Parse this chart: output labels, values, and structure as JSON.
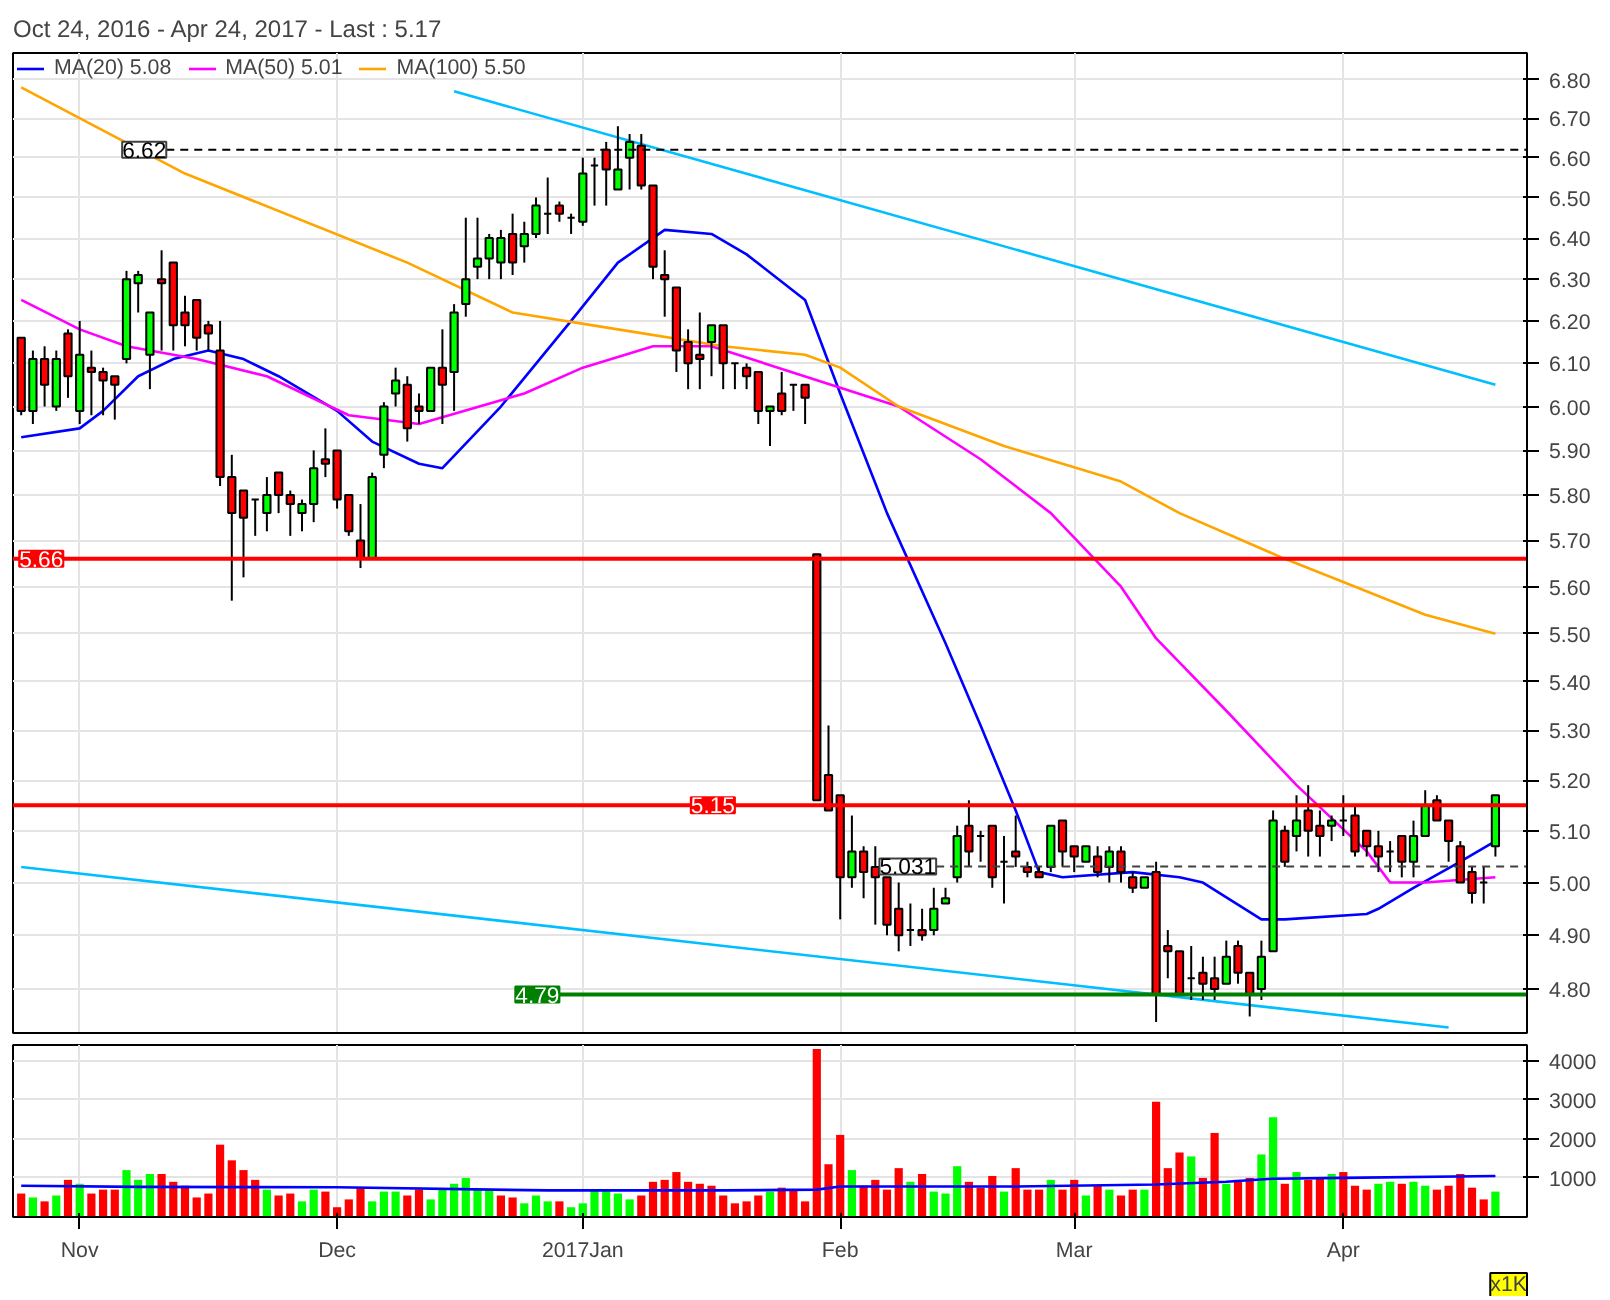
{
  "chart_data": [
    {
      "type": "candlestick",
      "title": "Oct 24, 2016 - Apr 24, 2017 - Last : 5.17",
      "log": true,
      "grid": true,
      "legend": "top left",
      "tick_labels": "y",
      "categories": [
        null,
        null,
        null,
        null,
        null,
        null,
        null,
        null,
        null,
        null,
        null,
        null,
        null,
        null,
        null,
        null,
        null,
        null,
        null,
        null,
        null,
        null,
        null,
        null,
        null,
        null,
        null,
        null,
        null,
        null,
        null,
        null,
        null,
        null,
        null,
        null,
        null,
        null,
        null,
        null,
        null,
        null,
        null,
        null,
        null,
        null,
        null,
        null,
        null,
        null,
        null,
        null,
        null,
        null,
        null,
        null,
        null,
        null,
        null,
        null,
        null,
        null,
        null,
        null,
        null,
        null,
        null,
        null,
        null,
        null,
        null,
        null,
        null,
        null,
        null,
        null,
        null,
        null,
        null,
        null,
        null,
        null,
        null,
        null,
        null,
        null,
        null,
        null,
        null,
        null,
        null,
        null,
        null,
        null,
        null,
        null,
        null,
        null,
        null,
        null,
        null,
        null,
        null,
        null,
        null,
        null,
        null,
        null,
        null,
        null,
        null,
        null,
        null,
        null,
        null,
        null,
        null,
        null,
        null,
        null,
        null,
        null,
        null,
        null,
        null,
        null,
        null
      ],
      "ylim": [
        4.72,
        6.87
      ],
      "yticks": [
        {
          "value": 4.8,
          "label": "4.80"
        },
        {
          "value": 4.9,
          "label": "4.90"
        },
        {
          "value": 5.0,
          "label": "5.00"
        },
        {
          "value": 5.1,
          "label": "5.10"
        },
        {
          "value": 5.2,
          "label": "5.20"
        },
        {
          "value": 5.3,
          "label": "5.30"
        },
        {
          "value": 5.4,
          "label": "5.40"
        },
        {
          "value": 5.5,
          "label": "5.50"
        },
        {
          "value": 5.6,
          "label": "5.60"
        },
        {
          "value": 5.7,
          "label": "5.70"
        },
        {
          "value": 5.8,
          "label": "5.80"
        },
        {
          "value": 5.9,
          "label": "5.90"
        },
        {
          "value": 6.0,
          "label": "6.00"
        },
        {
          "value": 6.1,
          "label": "6.10"
        },
        {
          "value": 6.2,
          "label": "6.20"
        },
        {
          "value": 6.3,
          "label": "6.30"
        },
        {
          "value": 6.4,
          "label": "6.40"
        },
        {
          "value": 6.5,
          "label": "6.50"
        },
        {
          "value": 6.6,
          "label": "6.60"
        },
        {
          "value": 6.7,
          "label": "6.70"
        },
        {
          "value": 6.8,
          "label": "6.80"
        }
      ],
      "ref_lines": [
        {
          "axis": "y",
          "value": 6.62,
          "label": "6.62",
          "color": "#000000",
          "line_style": "dashed"
        },
        {
          "axis": "y",
          "value": 5.66,
          "label": "5.66",
          "color": "#ff0000",
          "line_style": "solid"
        },
        {
          "axis": "y",
          "value": 5.15,
          "label": "5.15",
          "color": "#ff0000",
          "line_style": "solid"
        },
        {
          "axis": "y",
          "value": 5.031,
          "label": "5.031",
          "color": "#404040",
          "line_style": "dashed"
        },
        {
          "axis": "y",
          "value": 4.79,
          "label": "4.79",
          "color": "#008000",
          "line_style": "solid"
        }
      ],
      "series": [
        {
          "type": "line",
          "color": "#00bfff",
          "values": [
            null,
            null,
            null,
            null,
            null,
            null,
            null,
            null,
            null,
            null,
            null,
            null,
            null,
            null,
            null,
            null,
            null,
            null,
            null,
            null,
            null,
            null,
            null,
            null,
            null,
            null,
            null,
            null,
            null,
            null,
            null,
            null,
            null,
            null,
            null,
            null,
            null,
            6.77,
            null,
            null,
            null,
            null,
            null,
            null,
            null,
            null,
            null,
            null,
            null,
            null,
            null,
            null,
            null,
            null,
            null,
            null,
            null,
            null,
            null,
            null,
            null,
            null,
            null,
            null,
            null,
            null,
            null,
            null,
            null,
            null,
            null,
            null,
            null,
            null,
            null,
            null,
            null,
            null,
            null,
            null,
            null,
            null,
            null,
            null,
            null,
            null,
            null,
            null,
            null,
            null,
            null,
            null,
            null,
            null,
            null,
            null,
            null,
            null,
            null,
            null,
            null,
            null,
            null,
            null,
            null,
            null,
            null,
            null,
            null,
            null,
            null,
            null,
            null,
            null,
            null,
            null,
            null,
            null,
            null,
            null,
            null,
            null,
            null,
            null,
            null,
            null,
            6.05
          ]
        },
        {
          "type": "line",
          "color": "#00bfff",
          "values": [
            5.03,
            null,
            null,
            null,
            null,
            null,
            null,
            null,
            null,
            null,
            null,
            null,
            null,
            null,
            null,
            null,
            null,
            null,
            null,
            null,
            null,
            null,
            null,
            null,
            null,
            null,
            null,
            null,
            null,
            null,
            null,
            null,
            null,
            null,
            null,
            null,
            null,
            null,
            null,
            null,
            null,
            null,
            null,
            null,
            null,
            null,
            null,
            null,
            null,
            null,
            null,
            null,
            null,
            null,
            null,
            null,
            null,
            null,
            null,
            null,
            null,
            null,
            null,
            null,
            null,
            null,
            null,
            null,
            null,
            null,
            null,
            null,
            null,
            null,
            null,
            null,
            null,
            null,
            null,
            null,
            null,
            null,
            null,
            null,
            null,
            null,
            null,
            null,
            null,
            null,
            null,
            null,
            null,
            null,
            null,
            null,
            null,
            null,
            null,
            null,
            null,
            null,
            null,
            null,
            null,
            null,
            null,
            null,
            null,
            null,
            null,
            null,
            null,
            null,
            null,
            null,
            null,
            null,
            null,
            null,
            null,
            null,
            4.73,
            null,
            null,
            null,
            null
          ]
        },
        {
          "type": "line",
          "name": "MA(20) 5.08",
          "color": "#0000ff",
          "values": [
            5.93,
            null,
            null,
            null,
            null,
            5.95,
            null,
            5.99,
            null,
            null,
            6.07,
            null,
            null,
            6.11,
            null,
            null,
            6.13,
            null,
            null,
            6.11,
            null,
            null,
            6.07,
            null,
            null,
            null,
            null,
            5.99,
            null,
            null,
            5.92,
            null,
            null,
            null,
            5.87,
            null,
            5.86,
            null,
            null,
            null,
            null,
            6.0,
            null,
            null,
            null,
            null,
            null,
            6.2,
            null,
            null,
            null,
            6.34,
            null,
            null,
            null,
            6.42,
            null,
            null,
            null,
            6.41,
            null,
            null,
            6.36,
            null,
            null,
            null,
            null,
            6.25,
            null,
            null,
            6.03,
            null,
            null,
            null,
            5.76,
            null,
            null,
            null,
            null,
            5.48,
            null,
            null,
            5.31,
            null,
            null,
            5.14,
            null,
            5.02,
            null,
            5.01,
            null,
            null,
            null,
            null,
            null,
            5.02,
            null,
            null,
            null,
            5.01,
            null,
            5.0,
            null,
            null,
            null,
            null,
            4.93,
            null,
            4.93,
            null,
            null,
            null,
            null,
            null,
            null,
            4.94,
            4.95,
            null,
            null,
            4.99,
            null,
            null,
            null,
            5.04,
            null,
            null,
            5.08
          ]
        },
        {
          "type": "line",
          "name": "MA(50) 5.01",
          "color": "#ff00ff",
          "values": [
            6.25,
            null,
            null,
            null,
            null,
            6.18,
            null,
            null,
            null,
            6.14,
            null,
            null,
            null,
            null,
            null,
            6.11,
            null,
            null,
            null,
            null,
            null,
            6.07,
            null,
            null,
            null,
            null,
            null,
            null,
            5.98,
            null,
            null,
            null,
            null,
            null,
            5.96,
            null,
            null,
            null,
            null,
            null,
            null,
            null,
            null,
            6.03,
            null,
            null,
            null,
            null,
            6.09,
            null,
            null,
            null,
            null,
            null,
            6.14,
            null,
            null,
            null,
            null,
            6.14,
            null,
            null,
            null,
            null,
            null,
            null,
            null,
            null,
            null,
            null,
            null,
            null,
            null,
            null,
            null,
            6.0,
            null,
            null,
            null,
            null,
            null,
            null,
            5.88,
            null,
            null,
            null,
            null,
            null,
            5.76,
            null,
            null,
            null,
            null,
            null,
            5.6,
            null,
            null,
            5.49,
            null,
            null,
            null,
            null,
            null,
            5.34,
            null,
            null,
            null,
            null,
            null,
            5.19,
            null,
            null,
            null,
            null,
            null,
            5.06,
            null,
            5.0,
            null,
            null,
            5.0,
            null,
            null,
            null,
            null,
            null,
            5.01
          ]
        },
        {
          "type": "line",
          "name": "MA(100) 5.50",
          "color": "#ffa500",
          "values": [
            6.78,
            null,
            null,
            null,
            null,
            null,
            null,
            null,
            null,
            null,
            null,
            null,
            null,
            null,
            6.56,
            null,
            null,
            null,
            null,
            null,
            null,
            null,
            null,
            null,
            null,
            null,
            null,
            null,
            null,
            null,
            null,
            null,
            null,
            6.34,
            null,
            null,
            null,
            null,
            null,
            null,
            null,
            null,
            6.22,
            null,
            null,
            null,
            null,
            null,
            null,
            null,
            null,
            6.18,
            null,
            null,
            null,
            null,
            null,
            null,
            null,
            null,
            6.14,
            null,
            null,
            null,
            null,
            null,
            null,
            6.12,
            null,
            null,
            6.09,
            null,
            null,
            null,
            null,
            6.0,
            null,
            null,
            null,
            null,
            null,
            null,
            null,
            null,
            5.91,
            null,
            null,
            null,
            null,
            null,
            null,
            null,
            null,
            null,
            5.83,
            null,
            null,
            null,
            null,
            5.76,
            null,
            null,
            null,
            null,
            null,
            null,
            null,
            null,
            5.66,
            null,
            null,
            null,
            null,
            5.61,
            null,
            null,
            null,
            null,
            null,
            null,
            5.54,
            null,
            null,
            null,
            null,
            null,
            5.5
          ]
        }
      ],
      "ohlc": [
        [
          6.16,
          6.16,
          5.98,
          5.99
        ],
        [
          5.99,
          6.13,
          5.96,
          6.11
        ],
        [
          6.11,
          6.14,
          6.0,
          6.05
        ],
        [
          6.0,
          6.13,
          5.99,
          6.11
        ],
        [
          6.17,
          6.18,
          6.02,
          6.07
        ],
        [
          5.99,
          6.2,
          5.96,
          6.12
        ],
        [
          6.09,
          6.13,
          5.98,
          6.08
        ],
        [
          6.08,
          6.09,
          5.98,
          6.06
        ],
        [
          6.07,
          6.07,
          5.97,
          6.05
        ],
        [
          6.11,
          6.32,
          6.1,
          6.3
        ],
        [
          6.29,
          6.32,
          6.22,
          6.31
        ],
        [
          6.12,
          6.22,
          6.04,
          6.22
        ],
        [
          6.3,
          6.37,
          6.13,
          6.29
        ],
        [
          6.34,
          6.34,
          6.13,
          6.19
        ],
        [
          6.22,
          6.26,
          6.14,
          6.19
        ],
        [
          6.25,
          6.25,
          6.13,
          6.16
        ],
        [
          6.19,
          6.2,
          6.13,
          6.17
        ],
        [
          6.13,
          6.2,
          5.82,
          5.84
        ],
        [
          5.84,
          5.89,
          5.57,
          5.76
        ],
        [
          5.81,
          5.81,
          5.62,
          5.75
        ],
        [
          5.79,
          5.79,
          5.71,
          5.79
        ],
        [
          5.76,
          5.84,
          5.72,
          5.8
        ],
        [
          5.85,
          5.85,
          5.76,
          5.8
        ],
        [
          5.8,
          5.81,
          5.71,
          5.78
        ],
        [
          5.76,
          5.79,
          5.72,
          5.78
        ],
        [
          5.78,
          5.9,
          5.74,
          5.86
        ],
        [
          5.88,
          5.95,
          5.84,
          5.87
        ],
        [
          5.9,
          5.9,
          5.77,
          5.79
        ],
        [
          5.8,
          5.8,
          5.71,
          5.72
        ],
        [
          5.7,
          5.78,
          5.64,
          5.66
        ],
        [
          5.66,
          5.85,
          5.66,
          5.84
        ],
        [
          5.89,
          6.01,
          5.86,
          6.0
        ],
        [
          6.03,
          6.09,
          6.0,
          6.06
        ],
        [
          6.05,
          6.07,
          5.92,
          5.95
        ],
        [
          6.0,
          6.03,
          5.96,
          5.99
        ],
        [
          5.99,
          6.09,
          5.99,
          6.09
        ],
        [
          6.09,
          6.18,
          5.96,
          6.05
        ],
        [
          6.08,
          6.24,
          5.99,
          6.22
        ],
        [
          6.24,
          6.45,
          6.21,
          6.3
        ],
        [
          6.33,
          6.45,
          6.3,
          6.35
        ],
        [
          6.35,
          6.41,
          6.3,
          6.4
        ],
        [
          6.34,
          6.42,
          6.3,
          6.4
        ],
        [
          6.41,
          6.46,
          6.31,
          6.34
        ],
        [
          6.38,
          6.44,
          6.34,
          6.41
        ],
        [
          6.41,
          6.5,
          6.4,
          6.48
        ],
        [
          6.46,
          6.55,
          6.41,
          6.46
        ],
        [
          6.48,
          6.49,
          6.44,
          6.46
        ],
        [
          6.45,
          6.46,
          6.41,
          6.45
        ],
        [
          6.44,
          6.6,
          6.43,
          6.56
        ],
        [
          6.58,
          6.6,
          6.48,
          6.58
        ],
        [
          6.62,
          6.64,
          6.48,
          6.57
        ],
        [
          6.52,
          6.68,
          6.52,
          6.57
        ],
        [
          6.6,
          6.66,
          6.52,
          6.64
        ],
        [
          6.63,
          6.66,
          6.52,
          6.53
        ],
        [
          6.53,
          6.53,
          6.3,
          6.33
        ],
        [
          6.31,
          6.37,
          6.21,
          6.3
        ],
        [
          6.28,
          6.28,
          6.08,
          6.13
        ],
        [
          6.15,
          6.18,
          6.04,
          6.1
        ],
        [
          6.12,
          6.22,
          6.04,
          6.11
        ],
        [
          6.15,
          6.19,
          6.07,
          6.19
        ],
        [
          6.19,
          6.19,
          6.04,
          6.1
        ],
        [
          6.1,
          6.1,
          6.04,
          6.1
        ],
        [
          6.09,
          6.1,
          6.04,
          6.07
        ],
        [
          6.08,
          6.08,
          5.96,
          5.99
        ],
        [
          5.99,
          6.0,
          5.91,
          6.0
        ],
        [
          6.03,
          6.08,
          5.98,
          5.99
        ],
        [
          6.05,
          6.05,
          5.99,
          6.05
        ],
        [
          6.05,
          6.05,
          5.96,
          6.02
        ],
        [
          5.67,
          5.67,
          5.16,
          5.16
        ],
        [
          5.21,
          5.31,
          5.14,
          5.14
        ],
        [
          5.17,
          5.17,
          4.93,
          5.01
        ],
        [
          5.01,
          5.13,
          4.99,
          5.06
        ],
        [
          5.06,
          5.07,
          4.97,
          5.02
        ],
        [
          5.03,
          5.07,
          4.92,
          5.01
        ],
        [
          5.01,
          5.01,
          4.9,
          4.92
        ],
        [
          4.95,
          5.0,
          4.87,
          4.9
        ],
        [
          4.91,
          4.96,
          4.88,
          4.91
        ],
        [
          4.91,
          4.95,
          4.89,
          4.9
        ],
        [
          4.91,
          4.99,
          4.9,
          4.95
        ],
        [
          4.96,
          4.99,
          4.96,
          4.97
        ],
        [
          5.01,
          5.11,
          5.0,
          5.09
        ],
        [
          5.11,
          5.16,
          5.03,
          5.06
        ],
        [
          5.09,
          5.1,
          5.04,
          5.09
        ],
        [
          5.11,
          5.11,
          4.99,
          5.01
        ],
        [
          5.04,
          5.09,
          4.96,
          5.04
        ],
        [
          5.06,
          5.13,
          5.03,
          5.05
        ],
        [
          5.03,
          5.04,
          5.01,
          5.02
        ],
        [
          5.02,
          5.03,
          5.01,
          5.01
        ],
        [
          5.03,
          5.11,
          5.02,
          5.11
        ],
        [
          5.12,
          5.12,
          5.03,
          5.06
        ],
        [
          5.07,
          5.07,
          5.02,
          5.05
        ],
        [
          5.04,
          5.07,
          5.04,
          5.07
        ],
        [
          5.05,
          5.07,
          5.01,
          5.02
        ],
        [
          5.03,
          5.07,
          5.0,
          5.06
        ],
        [
          5.06,
          5.07,
          5.0,
          5.02
        ],
        [
          5.01,
          5.02,
          4.98,
          4.99
        ],
        [
          4.99,
          5.01,
          4.99,
          5.01
        ],
        [
          5.02,
          5.04,
          4.74,
          4.79
        ],
        [
          4.88,
          4.91,
          4.82,
          4.87
        ],
        [
          4.87,
          4.87,
          4.79,
          4.79
        ],
        [
          4.82,
          4.88,
          4.78,
          4.82
        ],
        [
          4.83,
          4.86,
          4.78,
          4.81
        ],
        [
          4.82,
          4.86,
          4.78,
          4.8
        ],
        [
          4.81,
          4.89,
          4.81,
          4.86
        ],
        [
          4.88,
          4.89,
          4.81,
          4.83
        ],
        [
          4.83,
          4.83,
          4.75,
          4.79
        ],
        [
          4.8,
          4.89,
          4.78,
          4.86
        ],
        [
          4.87,
          5.14,
          4.87,
          5.12
        ],
        [
          5.1,
          5.11,
          5.03,
          5.04
        ],
        [
          5.09,
          5.17,
          5.06,
          5.12
        ],
        [
          5.14,
          5.19,
          5.05,
          5.1
        ],
        [
          5.11,
          5.14,
          5.05,
          5.09
        ],
        [
          5.11,
          5.13,
          5.08,
          5.12
        ],
        [
          5.12,
          5.17,
          5.09,
          5.12
        ],
        [
          5.13,
          5.15,
          5.05,
          5.06
        ],
        [
          5.1,
          5.1,
          5.05,
          5.07
        ],
        [
          5.07,
          5.1,
          5.02,
          5.05
        ],
        [
          5.06,
          5.08,
          5.02,
          5.06
        ],
        [
          5.09,
          5.09,
          5.01,
          5.04
        ],
        [
          5.04,
          5.12,
          5.01,
          5.09
        ],
        [
          5.09,
          5.18,
          5.09,
          5.15
        ],
        [
          5.16,
          5.17,
          5.12,
          5.12
        ],
        [
          5.12,
          5.12,
          5.04,
          5.08
        ],
        [
          5.07,
          5.08,
          5.0,
          5.0
        ],
        [
          5.02,
          5.03,
          4.96,
          4.98
        ],
        [
          5.0,
          5.03,
          4.96,
          5.0
        ],
        [
          5.07,
          5.17,
          5.05,
          5.17
        ]
      ],
      "colors": [
        "#ff0000",
        "#00ff00",
        "#ff0000",
        "#00ff00",
        "#ff0000",
        "#00ff00",
        "#ff0000",
        "#ff0000",
        "#ff0000",
        "#00ff00",
        "#00ff00",
        "#00ff00",
        "#ff0000",
        "#ff0000",
        "#ff0000",
        "#ff0000",
        "#ff0000",
        "#ff0000",
        "#ff0000",
        "#ff0000",
        "#000000",
        "#00ff00",
        "#ff0000",
        "#ff0000",
        "#00ff00",
        "#00ff00",
        "#ff0000",
        "#ff0000",
        "#ff0000",
        "#ff0000",
        "#00ff00",
        "#00ff00",
        "#00ff00",
        "#ff0000",
        "#ff0000",
        "#00ff00",
        "#ff0000",
        "#00ff00",
        "#00ff00",
        "#00ff00",
        "#00ff00",
        "#00ff00",
        "#ff0000",
        "#00ff00",
        "#00ff00",
        "#000000",
        "#ff0000",
        "#000000",
        "#00ff00",
        "#000000",
        "#ff0000",
        "#00ff00",
        "#00ff00",
        "#ff0000",
        "#ff0000",
        "#ff0000",
        "#ff0000",
        "#ff0000",
        "#ff0000",
        "#00ff00",
        "#ff0000",
        "#000000",
        "#ff0000",
        "#ff0000",
        "#00ff00",
        "#ff0000",
        "#000000",
        "#ff0000",
        "#ff0000",
        "#ff0000",
        "#ff0000",
        "#00ff00",
        "#ff0000",
        "#ff0000",
        "#ff0000",
        "#ff0000",
        "#000000",
        "#ff0000",
        "#00ff00",
        "#00ff00",
        "#00ff00",
        "#ff0000",
        "#000000",
        "#ff0000",
        "#000000",
        "#ff0000",
        "#ff0000",
        "#ff0000",
        "#00ff00",
        "#ff0000",
        "#ff0000",
        "#00ff00",
        "#ff0000",
        "#00ff00",
        "#ff0000",
        "#ff0000",
        "#00ff00",
        "#ff0000",
        "#ff0000",
        "#ff0000",
        "#000000",
        "#ff0000",
        "#ff0000",
        "#00ff00",
        "#ff0000",
        "#ff0000",
        "#00ff00",
        "#00ff00",
        "#ff0000",
        "#00ff00",
        "#ff0000",
        "#ff0000",
        "#00ff00",
        "#000000",
        "#ff0000",
        "#ff0000",
        "#ff0000",
        "#000000",
        "#ff0000",
        "#00ff00",
        "#00ff00",
        "#ff0000",
        "#ff0000",
        "#ff0000",
        "#ff0000",
        "#000000",
        "#00ff00"
      ]
    },
    {
      "type": "bar",
      "grid": true,
      "categories": [
        null,
        null,
        null,
        null,
        null,
        "Nov",
        null,
        null,
        null,
        null,
        null,
        null,
        null,
        null,
        null,
        null,
        null,
        null,
        null,
        null,
        null,
        null,
        null,
        null,
        null,
        null,
        null,
        "Dec",
        null,
        null,
        null,
        null,
        null,
        null,
        null,
        null,
        null,
        null,
        null,
        null,
        null,
        null,
        null,
        null,
        null,
        null,
        null,
        null,
        "2017Jan",
        null,
        null,
        null,
        null,
        null,
        null,
        null,
        null,
        null,
        null,
        null,
        null,
        null,
        null,
        null,
        null,
        null,
        null,
        null,
        null,
        null,
        "Feb",
        null,
        null,
        null,
        null,
        null,
        null,
        null,
        null,
        null,
        null,
        null,
        null,
        null,
        null,
        null,
        null,
        null,
        null,
        null,
        "Mar",
        null,
        null,
        null,
        null,
        null,
        null,
        null,
        null,
        null,
        null,
        null,
        null,
        null,
        null,
        null,
        null,
        null,
        null,
        null,
        null,
        null,
        null,
        "Apr",
        null,
        null,
        null,
        null,
        null,
        null,
        null,
        null,
        null,
        null,
        null,
        null,
        null
      ],
      "ylim": [
        0,
        4400
      ],
      "yticks": [
        1000,
        2000,
        3000,
        4000
      ],
      "annotations": [
        "x1K"
      ],
      "values": [
        600,
        500,
        400,
        550,
        950,
        850,
        600,
        700,
        700,
        1200,
        950,
        1100,
        1100,
        900,
        800,
        500,
        600,
        1850,
        1450,
        1200,
        950,
        700,
        550,
        600,
        400,
        700,
        650,
        250,
        450,
        750,
        400,
        650,
        650,
        550,
        700,
        450,
        700,
        850,
        1000,
        700,
        700,
        550,
        500,
        350,
        550,
        400,
        400,
        250,
        350,
        700,
        700,
        600,
        450,
        550,
        900,
        950,
        1150,
        900,
        850,
        800,
        550,
        350,
        400,
        550,
        650,
        750,
        700,
        400,
        4300,
        1350,
        2100,
        1200,
        800,
        950,
        700,
        1250,
        900,
        1100,
        650,
        600,
        1300,
        900,
        750,
        1050,
        650,
        1250,
        700,
        700,
        950,
        700,
        950,
        550,
        800,
        700,
        550,
        700,
        700,
        2950,
        1250,
        1650,
        1550,
        1000,
        2150,
        850,
        950,
        1000,
        1600,
        2550,
        850,
        1150,
        950,
        1000,
        1100,
        1150,
        800,
        700,
        850,
        900,
        850,
        900,
        800,
        700,
        800,
        1100,
        750,
        450,
        650
      ],
      "colors": [
        "#ff0000",
        "#00ff00",
        "#ff0000",
        "#00ff00",
        "#ff0000",
        "#00ff00",
        "#ff0000",
        "#ff0000",
        "#ff0000",
        "#00ff00",
        "#00ff00",
        "#00ff00",
        "#ff0000",
        "#ff0000",
        "#ff0000",
        "#ff0000",
        "#ff0000",
        "#ff0000",
        "#ff0000",
        "#ff0000",
        "#ff0000",
        "#00ff00",
        "#ff0000",
        "#ff0000",
        "#00ff00",
        "#00ff00",
        "#ff0000",
        "#ff0000",
        "#ff0000",
        "#ff0000",
        "#00ff00",
        "#00ff00",
        "#00ff00",
        "#ff0000",
        "#ff0000",
        "#00ff00",
        "#00ff00",
        "#00ff00",
        "#00ff00",
        "#00ff00",
        "#00ff00",
        "#ff0000",
        "#ff0000",
        "#00ff00",
        "#00ff00",
        "#00ff00",
        "#ff0000",
        "#00ff00",
        "#00ff00",
        "#00ff00",
        "#00ff00",
        "#00ff00",
        "#00ff00",
        "#ff0000",
        "#ff0000",
        "#ff0000",
        "#ff0000",
        "#ff0000",
        "#ff0000",
        "#ff0000",
        "#ff0000",
        "#ff0000",
        "#ff0000",
        "#ff0000",
        "#00ff00",
        "#ff0000",
        "#ff0000",
        "#ff0000",
        "#ff0000",
        "#ff0000",
        "#ff0000",
        "#00ff00",
        "#ff0000",
        "#ff0000",
        "#ff0000",
        "#ff0000",
        "#00ff00",
        "#ff0000",
        "#00ff00",
        "#00ff00",
        "#00ff00",
        "#ff0000",
        "#ff0000",
        "#ff0000",
        "#00ff00",
        "#ff0000",
        "#ff0000",
        "#ff0000",
        "#00ff00",
        "#ff0000",
        "#ff0000",
        "#00ff00",
        "#ff0000",
        "#00ff00",
        "#ff0000",
        "#ff0000",
        "#00ff00",
        "#ff0000",
        "#ff0000",
        "#ff0000",
        "#00ff00",
        "#ff0000",
        "#ff0000",
        "#00ff00",
        "#ff0000",
        "#ff0000",
        "#00ff00",
        "#00ff00",
        "#ff0000",
        "#00ff00",
        "#ff0000",
        "#ff0000",
        "#00ff00",
        "#ff0000",
        "#ff0000",
        "#ff0000",
        "#00ff00",
        "#00ff00",
        "#ff0000",
        "#00ff00",
        "#00ff00",
        "#ff0000",
        "#ff0000",
        "#ff0000",
        "#ff0000",
        "#ff0000",
        "#00ff00"
      ],
      "series": [
        {
          "type": "line",
          "color": "#0000ff",
          "values": [
            800,
            null,
            null,
            null,
            null,
            null,
            null,
            null,
            null,
            null,
            770,
            null,
            null,
            null,
            null,
            null,
            null,
            null,
            null,
            null,
            null,
            null,
            null,
            null,
            null,
            null,
            null,
            760,
            null,
            null,
            null,
            null,
            null,
            null,
            null,
            null,
            null,
            null,
            null,
            null,
            null,
            null,
            null,
            null,
            null,
            680,
            null,
            null,
            null,
            null,
            null,
            null,
            null,
            null,
            null,
            null,
            null,
            null,
            null,
            null,
            680,
            null,
            null,
            null,
            null,
            null,
            null,
            null,
            700,
            null,
            780,
            null,
            null,
            null,
            null,
            null,
            null,
            null,
            null,
            null,
            null,
            null,
            null,
            null,
            null,
            780,
            null,
            null,
            null,
            null,
            null,
            null,
            null,
            null,
            null,
            null,
            null,
            830,
            null,
            null,
            null,
            null,
            null,
            900,
            null,
            null,
            null,
            980,
            null,
            null,
            null,
            null,
            null,
            1000,
            null,
            null,
            null,
            null,
            null,
            null,
            null,
            null,
            null,
            null,
            null,
            null,
            1050
          ]
        }
      ]
    }
  ]
}
